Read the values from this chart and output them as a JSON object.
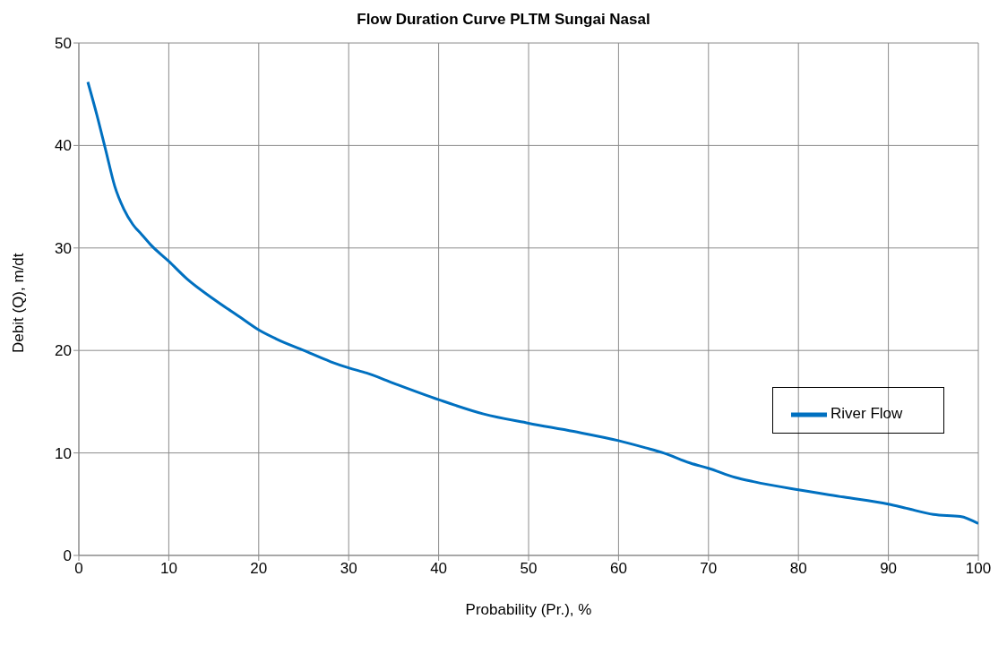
{
  "chart_data": {
    "type": "line",
    "title": "Flow Duration Curve PLTM Sungai Nasal",
    "xlabel": "Probability (Pr.), %",
    "ylabel": "Debit (Q), m/dt",
    "x": [
      1,
      2,
      3,
      4,
      5,
      6,
      7,
      8,
      10,
      12,
      15,
      18,
      20,
      22,
      25,
      28,
      30,
      32,
      35,
      40,
      45,
      50,
      55,
      60,
      63,
      65,
      68,
      70,
      73,
      75,
      80,
      85,
      90,
      92,
      95,
      98,
      100
    ],
    "series": [
      {
        "name": "River Flow",
        "color": "#0070c0",
        "values": [
          46.2,
          43,
          39.5,
          36,
          33.8,
          32.3,
          31.3,
          30.3,
          28.7,
          27,
          25,
          23.2,
          22,
          21.1,
          20,
          18.9,
          18.3,
          17.8,
          16.8,
          15.2,
          13.8,
          12.9,
          12.1,
          11.2,
          10.5,
          10,
          9,
          8.5,
          7.6,
          7.2,
          6.4,
          5.7,
          5.0,
          4.6,
          4.0,
          3.8,
          3.1
        ]
      }
    ],
    "xlim": [
      0,
      100
    ],
    "xticks": [
      0,
      10,
      20,
      30,
      40,
      50,
      60,
      70,
      80,
      90,
      100
    ],
    "ylim": [
      0,
      50
    ],
    "yticks": [
      0,
      10,
      20,
      30,
      40,
      50
    ],
    "grid": true,
    "legend": "right",
    "marker": "none",
    "line_style": "solid"
  }
}
